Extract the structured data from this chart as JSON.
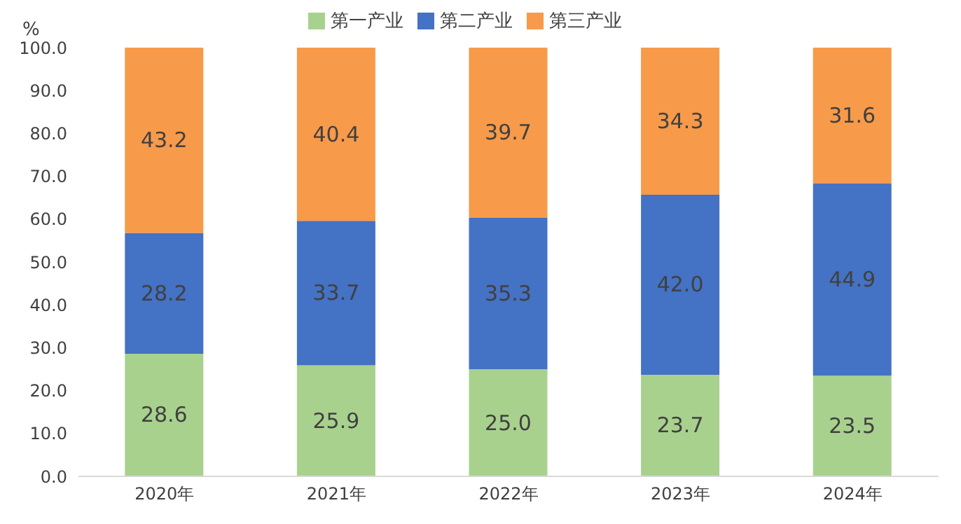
{
  "chart_data": {
    "type": "bar",
    "stacked": true,
    "ylabel": "%",
    "categories": [
      "2020年",
      "2021年",
      "2022年",
      "2023年",
      "2024年"
    ],
    "series": [
      {
        "name": "第一产业",
        "color": "#a9d18e",
        "values": [
          28.6,
          25.9,
          25.0,
          23.7,
          23.5
        ],
        "value_labels": [
          "28.6",
          "25.9",
          "25.0",
          "23.7",
          "23.5"
        ]
      },
      {
        "name": "第二产业",
        "color": "#4472c4",
        "values": [
          28.2,
          33.7,
          35.3,
          42.0,
          44.9
        ],
        "value_labels": [
          "28.2",
          "33.7",
          "35.3",
          "42.0",
          "44.9"
        ]
      },
      {
        "name": "第三产业",
        "color": "#f79a4a",
        "values": [
          43.2,
          40.4,
          39.7,
          34.3,
          31.6
        ],
        "value_labels": [
          "43.2",
          "40.4",
          "39.7",
          "34.3",
          "31.6"
        ]
      }
    ],
    "ylim": [
      0,
      100
    ],
    "yticks": [
      {
        "value": 0,
        "label": "0.0"
      },
      {
        "value": 10,
        "label": "10.0"
      },
      {
        "value": 20,
        "label": "20.0"
      },
      {
        "value": 30,
        "label": "30.0"
      },
      {
        "value": 40,
        "label": "40.0"
      },
      {
        "value": 50,
        "label": "50.0"
      },
      {
        "value": 60,
        "label": "60.0"
      },
      {
        "value": 70,
        "label": "70.0"
      },
      {
        "value": 80,
        "label": "80.0"
      },
      {
        "value": 90,
        "label": "90.0"
      },
      {
        "value": 100,
        "label": "100.0"
      }
    ],
    "legend": "top"
  }
}
